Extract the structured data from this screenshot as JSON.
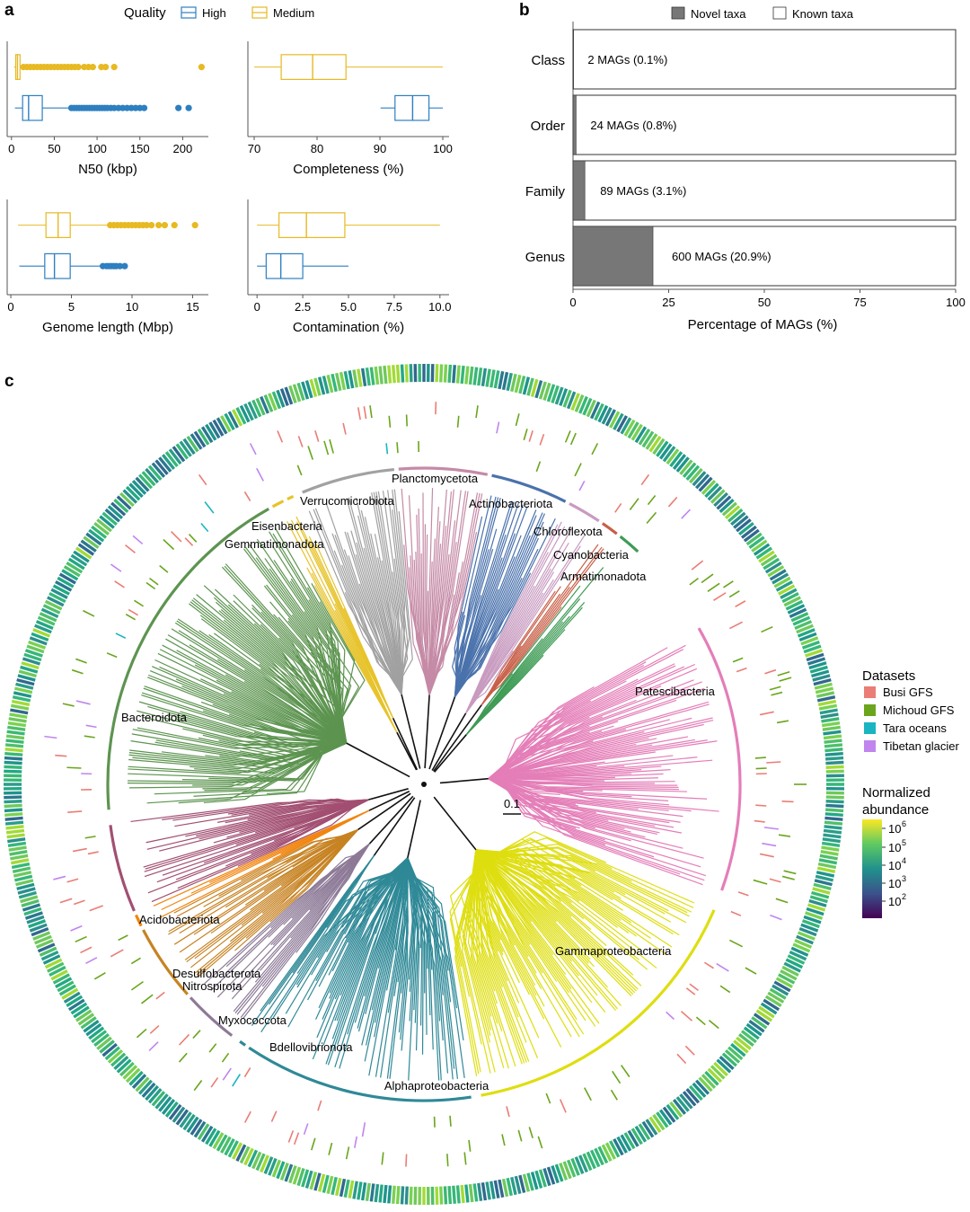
{
  "colors": {
    "high": "#2e7fc0",
    "medium": "#e7b922",
    "novel": "#777777",
    "busi": "#ea7d75",
    "michoud": "#6aa51c",
    "tara": "#1ab5c0",
    "tibetan": "#c085ee",
    "axis": "#555555",
    "text": "#111111"
  },
  "panels": {
    "a": "a",
    "b": "b",
    "c": "c"
  },
  "panel_a": {
    "legend": {
      "title": "Quality",
      "high": "High",
      "medium": "Medium"
    },
    "n50": {
      "xlabel": "N50 (kbp)",
      "ticks": [
        "0",
        "50",
        "100",
        "150",
        "200"
      ],
      "tick_values": [
        0,
        50,
        100,
        150,
        200
      ],
      "xlim": [
        -5,
        230
      ]
    },
    "completeness": {
      "xlabel": "Completeness (%)",
      "ticks": [
        "70",
        "80",
        "90",
        "100"
      ],
      "tick_values": [
        70,
        80,
        90,
        100
      ],
      "xlim": [
        69,
        101
      ]
    },
    "genome": {
      "xlabel": "Genome length (Mbp)",
      "ticks": [
        "0",
        "5",
        "10",
        "15"
      ],
      "tick_values": [
        0,
        5,
        10,
        15
      ],
      "xlim": [
        -0.3,
        16.3
      ]
    },
    "contamination": {
      "xlabel": "Contamination (%)",
      "ticks": [
        "0",
        "2.5",
        "5.0",
        "7.5",
        "10.0"
      ],
      "tick_values": [
        0,
        2.5,
        5,
        7.5,
        10
      ],
      "xlim": [
        -0.5,
        10.5
      ]
    }
  },
  "panel_b": {
    "legend_novel": "Novel taxa",
    "legend_known": "Known taxa",
    "xlabel": "Percentage of MAGs (%)",
    "ticks": [
      "0",
      "25",
      "50",
      "75",
      "100"
    ],
    "tick_values": [
      0,
      25,
      50,
      75,
      100
    ]
  },
  "panel_c": {
    "scale_label": "0.1",
    "datasets_title": "Datasets",
    "datasets": [
      "Busi GFS",
      "Michoud GFS",
      "Tara oceans",
      "Tibetan glacier"
    ],
    "abundance_title_1": "Normalized",
    "abundance_title_2": "abundance",
    "abundance_ticks": [
      "10",
      "10",
      "10",
      "10",
      "10"
    ],
    "abundance_exponents": [
      "6",
      "5",
      "4",
      "3",
      "2"
    ],
    "abundance_colors": [
      "#fde725",
      "#5ec962",
      "#21918c",
      "#3b528b",
      "#440154"
    ]
  },
  "chart_data": [
    {
      "type": "box",
      "title": "N50",
      "xlabel": "N50 (kbp)",
      "xlim": [
        -5,
        230
      ],
      "series": [
        {
          "name": "Medium",
          "min": 3,
          "q1": 5,
          "median": 7,
          "q3": 10,
          "max": 14,
          "outliers": [
            14,
            18,
            22,
            26,
            30,
            34,
            38,
            42,
            46,
            50,
            54,
            58,
            62,
            66,
            70,
            74,
            78,
            85,
            90,
            95,
            105,
            110,
            120,
            222
          ]
        },
        {
          "name": "High",
          "min": 4,
          "q1": 13,
          "median": 20,
          "q3": 36,
          "max": 70,
          "outliers": [
            70,
            73,
            76,
            79,
            82,
            85,
            88,
            91,
            94,
            97,
            100,
            103,
            106,
            109,
            112,
            116,
            120,
            125,
            130,
            135,
            140,
            145,
            150,
            155,
            195,
            207
          ]
        }
      ]
    },
    {
      "type": "box",
      "title": "Completeness",
      "xlabel": "Completeness (%)",
      "xlim": [
        69,
        101
      ],
      "series": [
        {
          "name": "Medium",
          "min": 70,
          "q1": 74.3,
          "median": 79.3,
          "q3": 84.6,
          "max": 100,
          "outliers": []
        },
        {
          "name": "High",
          "min": 90.1,
          "q1": 92.4,
          "median": 95.2,
          "q3": 97.8,
          "max": 100,
          "outliers": []
        }
      ]
    },
    {
      "type": "box",
      "title": "Genome length",
      "xlabel": "Genome length (Mbp)",
      "xlim": [
        -0.3,
        16.3
      ],
      "series": [
        {
          "name": "Medium",
          "min": 0.6,
          "q1": 2.9,
          "median": 3.9,
          "q3": 4.9,
          "max": 8.2,
          "outliers": [
            8.2,
            8.5,
            8.8,
            9.1,
            9.4,
            9.7,
            10.0,
            10.3,
            10.6,
            10.9,
            11.2,
            11.6,
            12.2,
            12.7,
            13.5,
            15.2
          ]
        },
        {
          "name": "High",
          "min": 0.7,
          "q1": 2.8,
          "median": 3.6,
          "q3": 4.9,
          "max": 7.6,
          "outliers": [
            7.6,
            7.9,
            8.1,
            8.3,
            8.5,
            8.7,
            9.0,
            9.4
          ]
        }
      ]
    },
    {
      "type": "box",
      "title": "Contamination",
      "xlabel": "Contamination (%)",
      "xlim": [
        -0.5,
        10.5
      ],
      "series": [
        {
          "name": "Medium",
          "min": 0,
          "q1": 1.2,
          "median": 2.7,
          "q3": 4.8,
          "max": 10,
          "outliers": []
        },
        {
          "name": "High",
          "min": 0,
          "q1": 0.5,
          "median": 1.3,
          "q3": 2.5,
          "max": 5,
          "outliers": []
        }
      ]
    },
    {
      "type": "bar",
      "orientation": "horizontal",
      "stacked": true,
      "categories": [
        "Class",
        "Order",
        "Family",
        "Genus"
      ],
      "series": [
        {
          "name": "Novel taxa",
          "values": [
            0.1,
            0.8,
            3.1,
            20.9
          ]
        },
        {
          "name": "Known taxa",
          "values": [
            99.9,
            99.2,
            96.9,
            79.1
          ]
        }
      ],
      "labels": [
        "2 MAGs (0.1%)",
        "24 MAGs (0.8%)",
        "89 MAGs (3.1%)",
        "600 MAGs (20.9%)"
      ],
      "xlabel": "Percentage of MAGs (%)",
      "xlim": [
        0,
        100
      ]
    },
    {
      "type": "tree",
      "layout": "circular",
      "clades": [
        {
          "name": "Patescibacteria",
          "color": "#e47eb8",
          "start": 60,
          "end": 110
        },
        {
          "name": "Gammaproteobacteria",
          "color": "#dede10",
          "start": 113,
          "end": 170
        },
        {
          "name": "Alphaproteobacteria",
          "color": "#2f8997",
          "start": 171,
          "end": 214
        },
        {
          "name": "Bdellovibrionota",
          "color": "#2f8997",
          "start": 214,
          "end": 216
        },
        {
          "name": "Myxococcota",
          "color": "#8d7a97",
          "start": 217,
          "end": 228
        },
        {
          "name": "Nitrospirota",
          "color": "#c78323",
          "start": 228,
          "end": 243
        },
        {
          "name": "Desulfobacterota",
          "color": "#f1850f",
          "start": 243,
          "end": 246
        },
        {
          "name": "Acidobacteriota",
          "color": "#a24f72",
          "start": 246,
          "end": 263
        },
        {
          "name": "Bacteroidota",
          "color": "#5d9450",
          "start": 265,
          "end": 331
        },
        {
          "name": "Gemmatimonadota",
          "color": "#e7c32b",
          "start": 331,
          "end": 334
        },
        {
          "name": "Eisenbacteria",
          "color": "#e7c32b",
          "start": 334,
          "end": 336
        },
        {
          "name": "Verrucomicrobiota",
          "color": "#a1a1a1",
          "start": 337,
          "end": 355
        },
        {
          "name": "Planctomycetota",
          "color": "#c58aa6",
          "start": 355,
          "end": 12
        },
        {
          "name": "Actinobacteriota",
          "color": "#4a72ac",
          "start": 12,
          "end": 27
        },
        {
          "name": "Chloroflexota",
          "color": "#c89bc0",
          "start": 27,
          "end": 34
        },
        {
          "name": "Cyanobacteria",
          "color": "#c85f48",
          "start": 34,
          "end": 38
        },
        {
          "name": "Armatimonadota",
          "color": "#3e9b55",
          "start": 38,
          "end": 43
        }
      ]
    }
  ]
}
